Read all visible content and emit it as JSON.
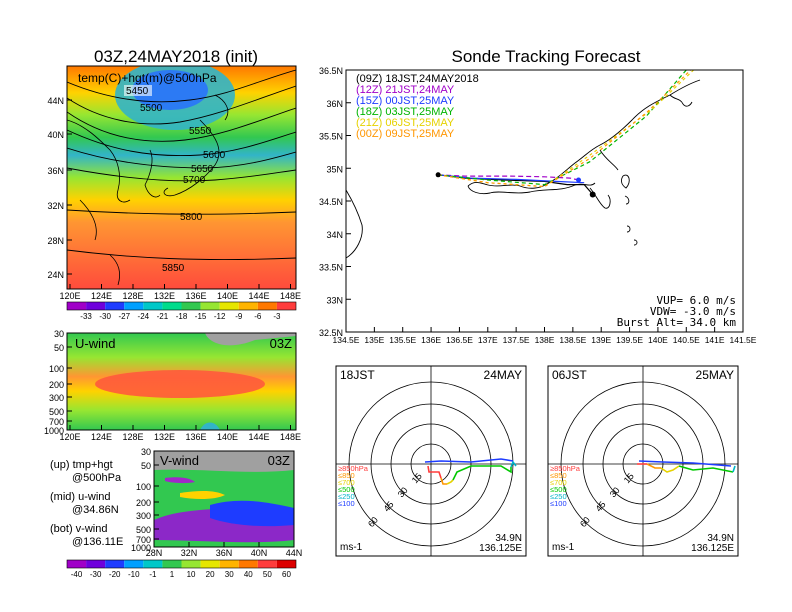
{
  "left_title": "03Z,24MAY2018 (init)",
  "right_title": "Sonde Tracking Forecast",
  "map500": {
    "label": "temp(C)+hgt(m)@500hPa",
    "lat_ticks": [
      "44N",
      "40N",
      "36N",
      "32N",
      "28N",
      "24N"
    ],
    "lon_ticks": [
      "120E",
      "124E",
      "128E",
      "132E",
      "136E",
      "140E",
      "144E",
      "148E"
    ],
    "contour_labels": [
      "5450",
      "5500",
      "5550",
      "5600",
      "5650",
      "5700",
      "5800",
      "5850"
    ],
    "colorbar_ticks": [
      "-33",
      "-30",
      "-27",
      "-24",
      "-21",
      "-18",
      "-15",
      "-12",
      "-9",
      "-6",
      "-3"
    ]
  },
  "uwind": {
    "label": "U-wind",
    "time": "03Z",
    "p_ticks": [
      "30",
      "50",
      "100",
      "200",
      "300",
      "500",
      "700",
      "1000"
    ],
    "lon_ticks": [
      "120E",
      "124E",
      "128E",
      "132E",
      "136E",
      "140E",
      "144E",
      "148E"
    ]
  },
  "vwind": {
    "label": "V-wind",
    "time": "03Z",
    "p_ticks": [
      "30",
      "50",
      "100",
      "200",
      "300",
      "500",
      "700",
      "1000"
    ],
    "lat_ticks": [
      "28N",
      "32N",
      "36N",
      "40N",
      "44N"
    ]
  },
  "legend_notes": {
    "up1": "(up)  tmp+hgt",
    "up2": "@500hPa",
    "mid1": "(mid)  u-wind",
    "mid2": "@34.86N",
    "bot1": "(bot)  v-wind",
    "bot2": "@136.11E"
  },
  "wind_colorbar_ticks": [
    "-40",
    "-30",
    "-20",
    "-10",
    "-1",
    "1",
    "10",
    "20",
    "30",
    "40",
    "50",
    "60"
  ],
  "track_map": {
    "lat_ticks": [
      "36.5N",
      "36N",
      "35.5N",
      "35N",
      "34.5N",
      "34N",
      "33.5N",
      "33N",
      "32.5N"
    ],
    "lon_ticks": [
      "134.5E",
      "135E",
      "135.5E",
      "136E",
      "136.5E",
      "137E",
      "137.5E",
      "138E",
      "138.5E",
      "139E",
      "139.5E",
      "140E",
      "140.5E",
      "141E",
      "141.5E"
    ],
    "legend": [
      {
        "text": "(09Z)  18JST,24MAY2018",
        "color": "#000000"
      },
      {
        "text": "(12Z)  21JST,24MAY",
        "color": "#a000c8"
      },
      {
        "text": "(15Z)  00JST,25MAY",
        "color": "#1e3cff"
      },
      {
        "text": "(18Z)  03JST,25MAY",
        "color": "#00b400"
      },
      {
        "text": "(21Z)  06JST,25MAY",
        "color": "#e6d200"
      },
      {
        "text": "(00Z)  09JST,25MAY",
        "color": "#ff9600"
      }
    ],
    "params": [
      "VUP=  6.0 m/s",
      "VDW= -3.0 m/s",
      "Burst Alt= 34.0 km"
    ]
  },
  "hodographs": [
    {
      "left": "18JST",
      "right": "24MAY",
      "lat": "34.9N",
      "lon": "136.125E",
      "unit": "ms-1",
      "rings": [
        "15",
        "30",
        "45",
        "60"
      ],
      "levels": [
        {
          "text": "≥850hPa",
          "color": "#ff3c3c"
        },
        {
          "text": "≤850",
          "color": "#ff9600"
        },
        {
          "text": "≤700",
          "color": "#e6d200"
        },
        {
          "text": "≤500",
          "color": "#00c800"
        },
        {
          "text": "≤250",
          "color": "#00b4c8"
        },
        {
          "text": "≤100",
          "color": "#1e3cff"
        }
      ]
    },
    {
      "left": "06JST",
      "right": "25MAY",
      "lat": "34.9N",
      "lon": "136.125E",
      "unit": "ms-1",
      "rings": [
        "15",
        "30",
        "45",
        "60"
      ],
      "levels": [
        {
          "text": "≥850hPa",
          "color": "#ff3c3c"
        },
        {
          "text": "≤850",
          "color": "#ff9600"
        },
        {
          "text": "≤700",
          "color": "#e6d200"
        },
        {
          "text": "≤500",
          "color": "#00c800"
        },
        {
          "text": "≤250",
          "color": "#00b4c8"
        },
        {
          "text": "≤100",
          "color": "#1e3cff"
        }
      ]
    }
  ],
  "chart_data": [
    {
      "type": "heatmap",
      "title": "temp(C)+hgt(m)@500hPa",
      "xlabel": "",
      "ylabel": "",
      "xlim": [
        120,
        150
      ],
      "ylim": [
        22,
        48
      ],
      "contour_levels": [
        5450,
        5500,
        5550,
        5600,
        5650,
        5700,
        5800,
        5850
      ]
    },
    {
      "type": "heatmap",
      "title": "U-wind",
      "xlim": [
        120,
        150
      ],
      "ylim": [
        1000,
        30
      ]
    },
    {
      "type": "heatmap",
      "title": "V-wind",
      "xlim": [
        28,
        44
      ],
      "ylim": [
        1000,
        30
      ]
    },
    {
      "type": "line",
      "title": "Sonde Tracking Forecast",
      "xlim": [
        134.5,
        141.5
      ],
      "ylim": [
        32.5,
        36.5
      ],
      "series": [
        {
          "name": "(09Z)  18JST,24MAY2018",
          "x": [
            136.125,
            136.6,
            137.3,
            138.0,
            138.4,
            138.7,
            138.85
          ],
          "y": [
            34.9,
            34.85,
            34.82,
            34.8,
            34.75,
            34.75,
            34.6
          ]
        },
        {
          "name": "(12Z)  21JST,24MAY",
          "x": [
            136.125,
            136.6,
            137.4,
            138.0,
            138.45,
            138.6
          ],
          "y": [
            34.9,
            34.88,
            34.88,
            34.87,
            34.85,
            34.82
          ]
        },
        {
          "name": "(15Z)  00JST,25MAY",
          "x": [
            136.125,
            136.7,
            137.5,
            138.2,
            138.7
          ],
          "y": [
            34.9,
            34.85,
            34.83,
            34.8,
            34.78
          ]
        },
        {
          "name": "(18Z)  03JST,25MAY",
          "x": [
            136.125,
            137.0,
            138.0,
            138.8,
            139.8,
            140.6
          ],
          "y": [
            34.9,
            34.82,
            34.75,
            35.1,
            35.8,
            36.6
          ]
        },
        {
          "name": "(21Z)  06JST,25MAY",
          "x": [
            136.125,
            137.0,
            138.0,
            138.8,
            139.9,
            140.75
          ],
          "y": [
            34.9,
            34.78,
            34.72,
            35.2,
            35.9,
            36.6
          ]
        },
        {
          "name": "(00Z)  09JST,25MAY",
          "x": [
            136.125,
            137.0,
            138.0,
            138.8,
            139.8,
            140.7
          ],
          "y": [
            34.9,
            34.78,
            34.72,
            35.15,
            35.85,
            36.6
          ]
        }
      ]
    }
  ]
}
